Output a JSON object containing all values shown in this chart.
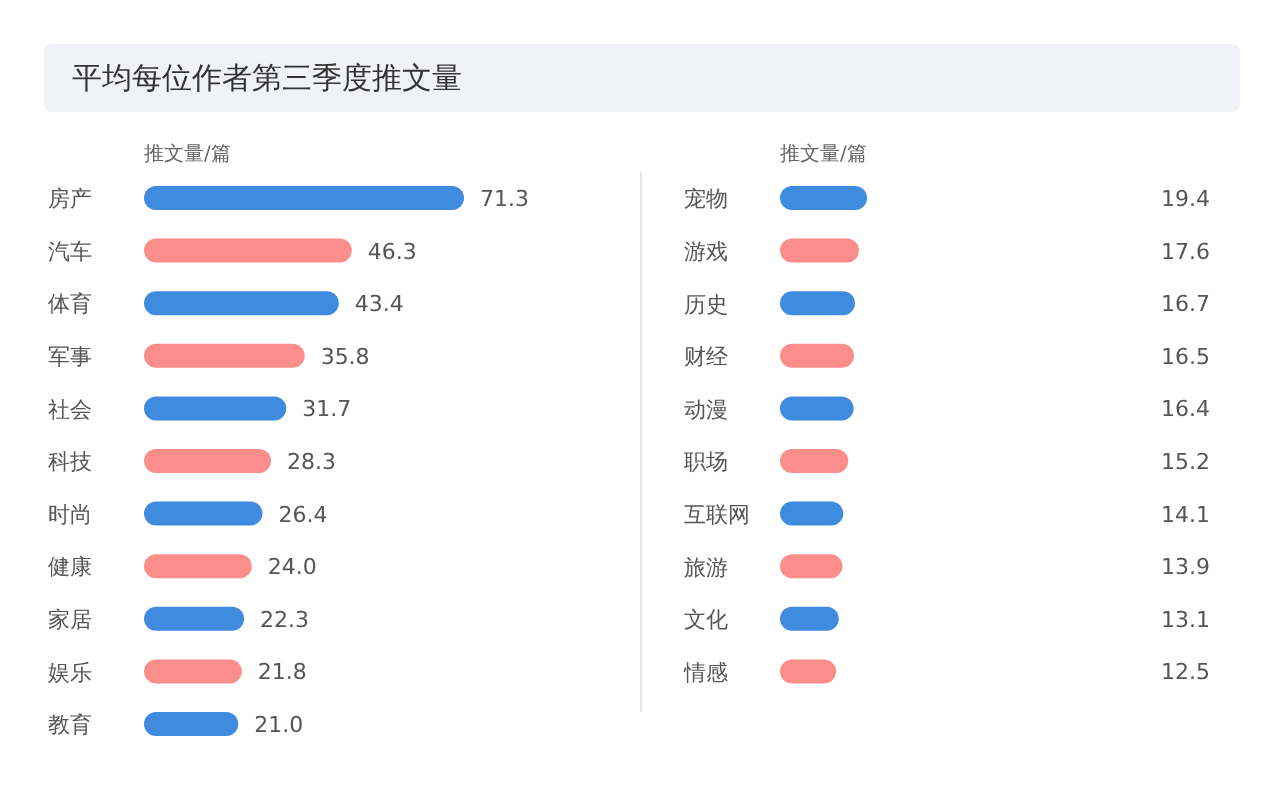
{
  "chart_data": [
    {
      "type": "bar",
      "orientation": "horizontal",
      "title": "平均每位作者第三季度推文量",
      "xlabel": "推文量/篇",
      "tick_labels": "y",
      "value_labels": [
        "71.3",
        "46.3",
        "43.4",
        "35.8",
        "31.7",
        "28.3",
        "26.4",
        "24.0",
        "22.3",
        "21.8",
        "21.0"
      ],
      "categories": [
        "房产",
        "汽车",
        "体育",
        "军事",
        "社会",
        "科技",
        "时尚",
        "健康",
        "家居",
        "娱乐",
        "教育"
      ],
      "values": [
        71.3,
        46.3,
        43.4,
        35.8,
        31.7,
        28.3,
        26.4,
        24.0,
        22.3,
        21.8,
        21.0
      ],
      "colors": [
        "#3f8be0",
        "#fb8e8a",
        "#3f8be0",
        "#fb8e8a",
        "#3f8be0",
        "#fb8e8a",
        "#3f8be0",
        "#fb8e8a",
        "#3f8be0",
        "#fb8e8a",
        "#3f8be0"
      ]
    },
    {
      "type": "bar",
      "orientation": "horizontal",
      "xlabel": "推文量/篇",
      "tick_labels": "y",
      "value_labels": [
        "19.4",
        "17.6",
        "16.7",
        "16.5",
        "16.4",
        "15.2",
        "14.1",
        "13.9",
        "13.1",
        "12.5"
      ],
      "categories": [
        "宠物",
        "游戏",
        "历史",
        "财经",
        "动漫",
        "职场",
        "互联网",
        "旅游",
        "文化",
        "情感"
      ],
      "values": [
        19.4,
        17.6,
        16.7,
        16.5,
        16.4,
        15.2,
        14.1,
        13.9,
        13.1,
        12.5
      ],
      "colors": [
        "#3f8be0",
        "#fb8e8a",
        "#3f8be0",
        "#fb8e8a",
        "#3f8be0",
        "#fb8e8a",
        "#3f8be0",
        "#fb8e8a",
        "#3f8be0",
        "#fb8e8a"
      ]
    }
  ]
}
